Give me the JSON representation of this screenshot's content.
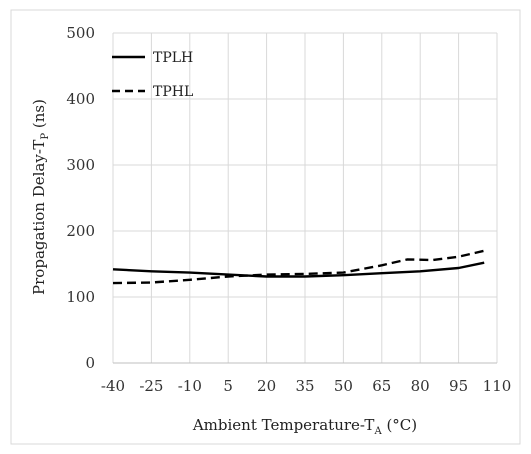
{
  "chart_data": {
    "type": "line",
    "title": "",
    "xlabel": {
      "main": "Ambient Temperature-T",
      "sub": "A",
      "suffix": " (°C)"
    },
    "ylabel": {
      "main": "Propagation Delay-T",
      "sub": "P",
      "suffix": " (ns)"
    },
    "x_ticks": [
      "-40",
      "-25",
      "-10",
      "5",
      "20",
      "35",
      "50",
      "65",
      "80",
      "95",
      "110"
    ],
    "y_ticks": [
      "0",
      "100",
      "200",
      "300",
      "400",
      "500"
    ],
    "xlim": [
      -40,
      110
    ],
    "ylim": [
      0,
      500
    ],
    "grid": true,
    "legend_position": "top-left",
    "series": [
      {
        "name": "TPLH",
        "line_style": "solid",
        "color": "#000000",
        "x": [
          -40,
          -25,
          -10,
          5,
          20,
          35,
          50,
          65,
          80,
          95,
          105
        ],
        "y": [
          142,
          139,
          137,
          134,
          131,
          131,
          133,
          136,
          139,
          144,
          152
        ]
      },
      {
        "name": "TPHL",
        "line_style": "dashed",
        "color": "#000000",
        "x": [
          -40,
          -25,
          -10,
          5,
          20,
          35,
          50,
          65,
          75,
          85,
          95,
          105
        ],
        "y": [
          121,
          122,
          126,
          131,
          134,
          135,
          137,
          148,
          157,
          156,
          161,
          170
        ]
      }
    ]
  }
}
